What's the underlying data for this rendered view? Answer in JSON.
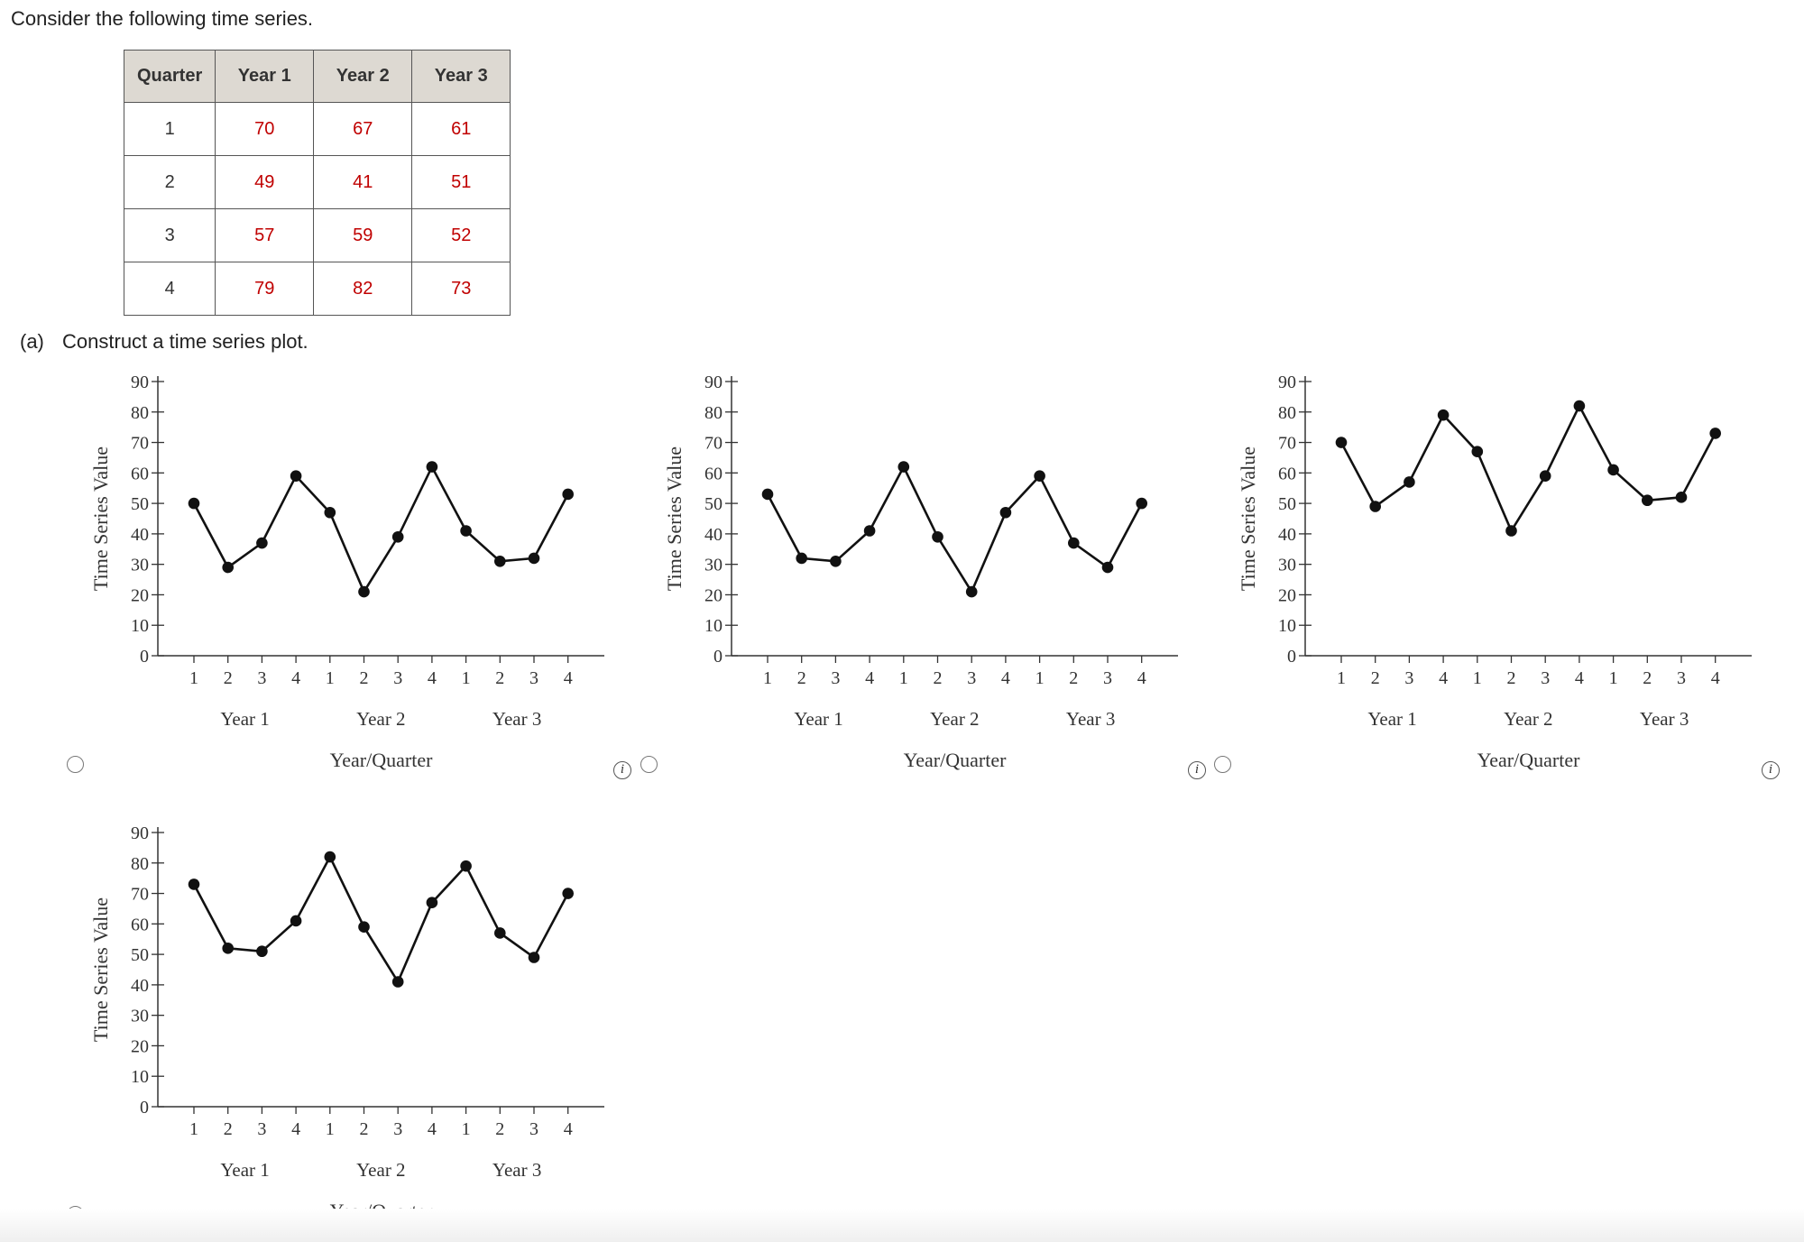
{
  "intro": "Consider the following time series.",
  "table": {
    "headers": [
      "Quarter",
      "Year 1",
      "Year 2",
      "Year 3"
    ],
    "rows": [
      [
        "1",
        "70",
        "67",
        "61"
      ],
      [
        "2",
        "49",
        "41",
        "51"
      ],
      [
        "3",
        "57",
        "59",
        "52"
      ],
      [
        "4",
        "79",
        "82",
        "73"
      ]
    ]
  },
  "part_a": {
    "label": "(a)",
    "text": "Construct a time series plot."
  },
  "chart_data": [
    {
      "type": "line",
      "title": "",
      "xlabel": "Year/Quarter",
      "ylabel": "Time Series Value",
      "ylim": [
        0,
        90
      ],
      "yticks": [
        0,
        10,
        20,
        30,
        40,
        50,
        60,
        70,
        80,
        90
      ],
      "quarters": [
        "1",
        "2",
        "3",
        "4"
      ],
      "years": [
        "Year 1",
        "Year 2",
        "Year 3"
      ],
      "series": [
        {
          "values": [
            50,
            29,
            37,
            59,
            47,
            21,
            39,
            62,
            41,
            31,
            32,
            53
          ]
        }
      ]
    },
    {
      "type": "line",
      "title": "",
      "xlabel": "Year/Quarter",
      "ylabel": "Time Series Value",
      "ylim": [
        0,
        90
      ],
      "yticks": [
        0,
        10,
        20,
        30,
        40,
        50,
        60,
        70,
        80,
        90
      ],
      "quarters": [
        "1",
        "2",
        "3",
        "4"
      ],
      "years": [
        "Year 1",
        "Year 2",
        "Year 3"
      ],
      "series": [
        {
          "values": [
            53,
            32,
            31,
            41,
            62,
            39,
            21,
            47,
            59,
            37,
            29,
            50
          ]
        }
      ]
    },
    {
      "type": "line",
      "title": "",
      "xlabel": "Year/Quarter",
      "ylabel": "Time Series Value",
      "ylim": [
        0,
        90
      ],
      "yticks": [
        0,
        10,
        20,
        30,
        40,
        50,
        60,
        70,
        80,
        90
      ],
      "quarters": [
        "1",
        "2",
        "3",
        "4"
      ],
      "years": [
        "Year 1",
        "Year 2",
        "Year 3"
      ],
      "series": [
        {
          "values": [
            70,
            49,
            57,
            79,
            67,
            41,
            59,
            82,
            61,
            51,
            52,
            73
          ]
        }
      ]
    },
    {
      "type": "line",
      "title": "",
      "xlabel": "Year/Quarter",
      "ylabel": "Time Series Value",
      "ylim": [
        0,
        90
      ],
      "yticks": [
        0,
        10,
        20,
        30,
        40,
        50,
        60,
        70,
        80,
        90
      ],
      "quarters": [
        "1",
        "2",
        "3",
        "4"
      ],
      "years": [
        "Year 1",
        "Year 2",
        "Year 3"
      ],
      "series": [
        {
          "values": [
            73,
            52,
            51,
            61,
            82,
            59,
            41,
            67,
            79,
            57,
            49,
            70
          ]
        }
      ]
    }
  ],
  "info_icon": "i",
  "colors": {
    "value_text": "#c00000",
    "header_bg": "#ddd9d2",
    "line": "#111111"
  }
}
